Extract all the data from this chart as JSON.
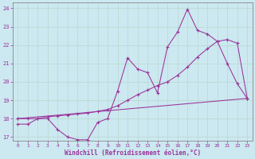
{
  "xlabel": "Windchill (Refroidissement éolien,°C)",
  "background_color": "#cce8f0",
  "line_color": "#993399",
  "grid_color": "#aaddcc",
  "xlim": [
    -0.5,
    23.5
  ],
  "ylim": [
    16.8,
    24.3
  ],
  "xticks": [
    0,
    1,
    2,
    3,
    4,
    5,
    6,
    7,
    8,
    9,
    10,
    11,
    12,
    13,
    14,
    15,
    16,
    17,
    18,
    19,
    20,
    21,
    22,
    23
  ],
  "yticks": [
    17,
    18,
    19,
    20,
    21,
    22,
    23,
    24
  ],
  "line1_x": [
    0,
    1,
    2,
    3,
    4,
    5,
    6,
    7,
    8,
    9,
    10,
    11,
    12,
    13,
    14,
    15,
    16,
    17,
    18,
    19,
    20,
    21,
    22,
    23
  ],
  "line1_y": [
    17.7,
    17.7,
    18.0,
    18.0,
    17.4,
    17.0,
    16.85,
    16.85,
    17.8,
    18.0,
    19.5,
    21.3,
    20.7,
    20.5,
    19.4,
    21.9,
    22.7,
    23.95,
    22.8,
    22.6,
    22.2,
    21.0,
    19.9,
    19.1
  ],
  "line2_x": [
    0,
    1,
    2,
    3,
    4,
    5,
    6,
    7,
    8,
    9,
    10,
    11,
    12,
    13,
    14,
    15,
    16,
    17,
    18,
    19,
    20,
    21,
    22,
    23
  ],
  "line2_y": [
    18.0,
    18.0,
    18.0,
    18.1,
    18.15,
    18.2,
    18.25,
    18.3,
    18.4,
    18.5,
    18.7,
    19.0,
    19.3,
    19.55,
    19.8,
    20.0,
    20.35,
    20.8,
    21.35,
    21.8,
    22.2,
    22.3,
    22.1,
    19.1
  ],
  "line3_x": [
    0,
    23
  ],
  "line3_y": [
    18.0,
    19.1
  ]
}
